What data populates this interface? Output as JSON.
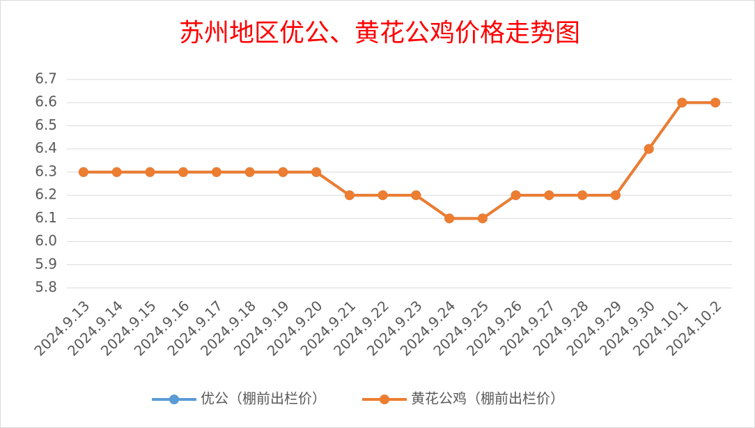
{
  "chart_data": {
    "type": "line",
    "title": "苏州地区优公、黄花公鸡价格走势图",
    "categories": [
      "2024.9.13",
      "2024.9.14",
      "2024.9.15",
      "2024.9.16",
      "2024.9.17",
      "2024.9.18",
      "2024.9.19",
      "2024.9.20",
      "2024.9.21",
      "2024.9.22",
      "2024.9.23",
      "2024.9.24",
      "2024.9.25",
      "2024.9.26",
      "2024.9.27",
      "2024.9.28",
      "2024.9.29",
      "2024.9.30",
      "2024.10.1",
      "2024.10.2"
    ],
    "series": [
      {
        "name": "优公（棚前出栏价）",
        "color": "#5b9bd5",
        "values": [
          6.3,
          6.3,
          6.3,
          6.3,
          6.3,
          6.3,
          6.3,
          6.3,
          6.2,
          6.2,
          6.2,
          6.1,
          6.1,
          6.2,
          6.2,
          6.2,
          6.2,
          6.4,
          6.6,
          6.6
        ]
      },
      {
        "name": "黄花公鸡（棚前出栏价）",
        "color": "#ed7d31",
        "values": [
          6.3,
          6.3,
          6.3,
          6.3,
          6.3,
          6.3,
          6.3,
          6.3,
          6.2,
          6.2,
          6.2,
          6.1,
          6.1,
          6.2,
          6.2,
          6.2,
          6.2,
          6.4,
          6.6,
          6.6
        ]
      }
    ],
    "ylim": [
      5.8,
      6.7
    ],
    "yticks": [
      5.8,
      5.9,
      {
        "value": 6,
        "label": "6.0"
      },
      6.1,
      6.2,
      6.3,
      6.4,
      6.5,
      6.6,
      6.7
    ],
    "grid": true,
    "legend": "bottom"
  }
}
